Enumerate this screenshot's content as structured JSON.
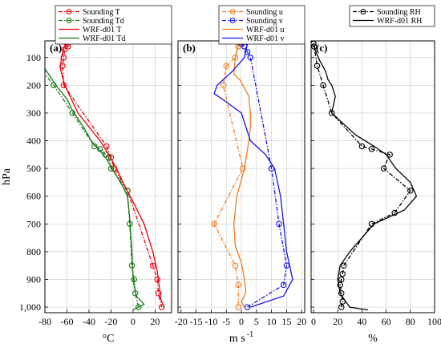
{
  "chart_data": [
    {
      "type": "line",
      "panel_label": "(a)",
      "xlabel": "°C",
      "ylabel": "hPa",
      "xlim": [
        -80,
        35
      ],
      "xticks": [
        -80,
        -60,
        -40,
        -20,
        0,
        20
      ],
      "ylim": [
        1020,
        40
      ],
      "yticks": [
        100,
        200,
        300,
        400,
        500,
        600,
        700,
        800,
        900,
        1000
      ],
      "ytick_labels": [
        "100",
        "200",
        "300",
        "400",
        "500",
        "600",
        "700",
        "800",
        "900",
        "1,000"
      ],
      "grid": true,
      "legend_position": "top-right",
      "series": [
        {
          "name": "Sounding T",
          "color": "#e8000b",
          "style": "dash-dot",
          "marker": "circle",
          "x": [
            -60,
            -59,
            -62,
            -63,
            -64,
            -63,
            -24,
            -20,
            -17,
            -5,
            18,
            22,
            23,
            26
          ],
          "y": [
            50,
            60,
            70,
            100,
            130,
            200,
            420,
            460,
            500,
            580,
            850,
            900,
            950,
            1000
          ]
        },
        {
          "name": "Sounding Td",
          "color": "#1a7a1a",
          "style": "dash-dot",
          "marker": "circle",
          "x": [
            -82,
            -72,
            -55,
            -35,
            -30,
            -25,
            -22,
            -20,
            -5,
            -3,
            -1,
            1,
            2,
            5
          ],
          "y": [
            150,
            200,
            300,
            420,
            430,
            450,
            460,
            500,
            580,
            700,
            850,
            900,
            950,
            1000
          ]
        },
        {
          "name": "WRF-d01 T",
          "color": "#e8000b",
          "style": "solid",
          "x": [
            -61,
            -63,
            -65,
            -66,
            -62,
            -50,
            -30,
            -22,
            -15,
            -8,
            0,
            10,
            18,
            22,
            24,
            25,
            28
          ],
          "y": [
            50,
            70,
            100,
            140,
            200,
            300,
            400,
            450,
            500,
            560,
            620,
            700,
            800,
            870,
            930,
            970,
            1000
          ]
        },
        {
          "name": "WRF-d01 Td",
          "color": "#1a7a1a",
          "style": "solid",
          "x": [
            -80,
            -75,
            -70,
            -60,
            -55,
            -45,
            -38,
            -25,
            -10,
            -5,
            -3,
            -1,
            0,
            3,
            10,
            5,
            0
          ],
          "y": [
            140,
            170,
            200,
            250,
            290,
            350,
            400,
            460,
            560,
            600,
            680,
            800,
            900,
            960,
            990,
            1000,
            1010
          ]
        }
      ]
    },
    {
      "type": "line",
      "panel_label": "(b)",
      "xlabel": "m s",
      "xlabel_sup": "-1",
      "xlim": [
        -21,
        21
      ],
      "xticks": [
        -20,
        -15,
        -10,
        -5,
        0,
        5,
        10,
        15,
        20
      ],
      "ylim": [
        1020,
        40
      ],
      "grid": true,
      "legend_position": "top-right",
      "series": [
        {
          "name": "Sounding u",
          "color": "#f07c23",
          "style": "dash-dot",
          "marker": "circle",
          "x": [
            0,
            -1,
            -2,
            -5,
            -6,
            0.5,
            -9,
            -2,
            -1,
            -1
          ],
          "y": [
            50,
            60,
            100,
            130,
            200,
            500,
            700,
            850,
            920,
            1000
          ]
        },
        {
          "name": "Sounding v",
          "color": "#1414e6",
          "style": "dash-dot",
          "marker": "circle",
          "x": [
            0,
            1,
            2,
            3,
            10,
            12.5,
            15,
            14,
            2
          ],
          "y": [
            50,
            60,
            80,
            100,
            500,
            700,
            850,
            920,
            1000
          ]
        },
        {
          "name": "WRF-d01 u",
          "color": "#f07c23",
          "style": "solid",
          "x": [
            -1,
            -2,
            -2.5,
            -0.5,
            2.5,
            3,
            3,
            2.5,
            1,
            -1.5,
            -2.5,
            -2,
            0,
            1,
            1.5,
            1,
            0,
            1
          ],
          "y": [
            50,
            100,
            160,
            180,
            240,
            300,
            350,
            400,
            500,
            600,
            700,
            780,
            840,
            900,
            940,
            960,
            980,
            1000
          ]
        },
        {
          "name": "WRF-d01 v",
          "color": "#1414e6",
          "style": "solid",
          "x": [
            2,
            1,
            -3,
            -6,
            -8,
            -9,
            -5,
            0,
            3,
            8,
            11,
            12,
            13,
            14,
            15,
            17,
            14,
            3
          ],
          "y": [
            50,
            100,
            150,
            180,
            200,
            230,
            260,
            300,
            400,
            450,
            500,
            550,
            600,
            700,
            800,
            900,
            960,
            1000
          ]
        }
      ]
    },
    {
      "type": "line",
      "panel_label": "(c)",
      "xlabel": "%",
      "xlim": [
        -2,
        100
      ],
      "xticks": [
        0,
        20,
        40,
        60,
        80,
        100
      ],
      "ylim": [
        1020,
        40
      ],
      "grid": true,
      "legend_position": "top-right",
      "series": [
        {
          "name": "Sounding RH",
          "color": "#000000",
          "style": "dash-dot",
          "marker": "circle",
          "x": [
            0,
            0.5,
            3,
            8,
            15,
            40,
            48,
            63,
            58,
            80,
            67,
            48,
            25,
            24,
            23,
            22,
            23,
            24,
            23
          ],
          "y": [
            50,
            60,
            130,
            200,
            300,
            420,
            430,
            450,
            500,
            580,
            660,
            700,
            850,
            880,
            900,
            920,
            950,
            980,
            1000
          ]
        },
        {
          "name": "WRF-d01 RH",
          "color": "#000000",
          "style": "solid",
          "x": [
            0,
            2,
            5,
            10,
            12,
            15,
            18,
            15,
            25,
            35,
            50,
            60,
            68,
            80,
            85,
            75,
            50,
            30,
            22,
            20,
            22,
            25,
            30,
            45
          ],
          "y": [
            50,
            80,
            110,
            150,
            180,
            200,
            240,
            300,
            340,
            380,
            420,
            450,
            500,
            550,
            600,
            650,
            700,
            800,
            850,
            900,
            950,
            970,
            1000,
            1010
          ]
        }
      ]
    }
  ]
}
